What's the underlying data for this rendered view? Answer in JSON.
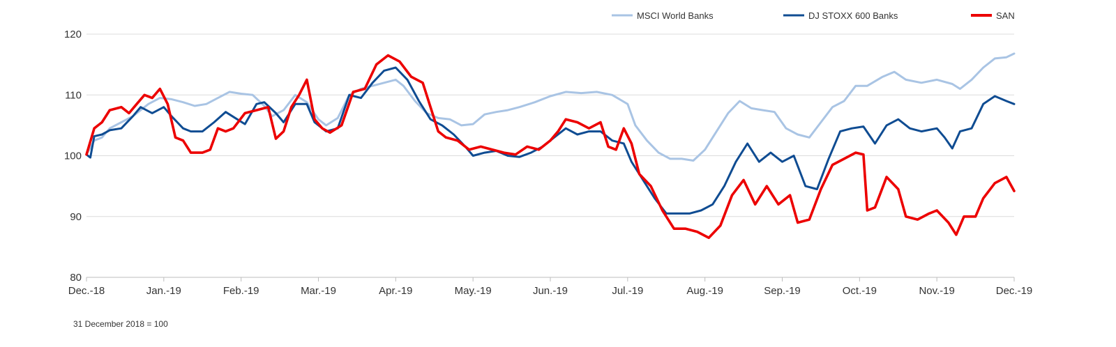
{
  "chart_data": {
    "type": "line",
    "categories": [
      "Dec.-18",
      "Jan.-19",
      "Feb.-19",
      "Mar.-19",
      "Apr.-19",
      "May.-19",
      "Jun.-19",
      "Jul.-19",
      "Aug.-19",
      "Sep.-19",
      "Oct.-19",
      "Nov.-19",
      "Dec.-19"
    ],
    "ylim": [
      80,
      120
    ],
    "yticks": [
      80,
      90,
      100,
      110,
      120
    ],
    "grid": true,
    "legend_position": "top-right",
    "series": [
      {
        "name": "MSCI World Banks",
        "color": "#a9c4e4",
        "values": [
          [
            0,
            100.2
          ],
          [
            0.1,
            102.5
          ],
          [
            0.2,
            103.0
          ],
          [
            0.3,
            104.5
          ],
          [
            0.45,
            105.5
          ],
          [
            0.6,
            106.5
          ],
          [
            0.8,
            108.5
          ],
          [
            0.95,
            109.5
          ],
          [
            1.1,
            109.3
          ],
          [
            1.25,
            108.8
          ],
          [
            1.4,
            108.2
          ],
          [
            1.55,
            108.5
          ],
          [
            1.7,
            109.5
          ],
          [
            1.85,
            110.5
          ],
          [
            2.0,
            110.2
          ],
          [
            2.15,
            110.0
          ],
          [
            2.3,
            108.2
          ],
          [
            2.4,
            106.5
          ],
          [
            2.55,
            107.5
          ],
          [
            2.7,
            110.0
          ],
          [
            2.85,
            108.8
          ],
          [
            3.0,
            106.0
          ],
          [
            3.1,
            105.0
          ],
          [
            3.25,
            106.2
          ],
          [
            3.4,
            110.0
          ],
          [
            3.55,
            111.0
          ],
          [
            3.7,
            111.5
          ],
          [
            3.85,
            112.0
          ],
          [
            4.0,
            112.5
          ],
          [
            4.1,
            111.5
          ],
          [
            4.25,
            109.0
          ],
          [
            4.4,
            107.0
          ],
          [
            4.55,
            106.2
          ],
          [
            4.7,
            106.0
          ],
          [
            4.85,
            105.0
          ],
          [
            5.0,
            105.2
          ],
          [
            5.15,
            106.8
          ],
          [
            5.3,
            107.2
          ],
          [
            5.45,
            107.5
          ],
          [
            5.6,
            108.0
          ],
          [
            5.8,
            108.8
          ],
          [
            6.0,
            109.8
          ],
          [
            6.2,
            110.5
          ],
          [
            6.4,
            110.3
          ],
          [
            6.6,
            110.5
          ],
          [
            6.8,
            110.0
          ],
          [
            7.0,
            108.5
          ],
          [
            7.1,
            105.0
          ],
          [
            7.25,
            102.5
          ],
          [
            7.4,
            100.5
          ],
          [
            7.55,
            99.5
          ],
          [
            7.7,
            99.5
          ],
          [
            7.85,
            99.2
          ],
          [
            8.0,
            101.0
          ],
          [
            8.15,
            104.0
          ],
          [
            8.3,
            107.0
          ],
          [
            8.45,
            109.0
          ],
          [
            8.6,
            107.8
          ],
          [
            8.75,
            107.5
          ],
          [
            8.9,
            107.2
          ],
          [
            9.05,
            104.5
          ],
          [
            9.2,
            103.5
          ],
          [
            9.35,
            103.0
          ],
          [
            9.5,
            105.5
          ],
          [
            9.65,
            108.0
          ],
          [
            9.8,
            109.0
          ],
          [
            9.95,
            111.5
          ],
          [
            10.1,
            111.5
          ],
          [
            10.3,
            113.0
          ],
          [
            10.45,
            113.8
          ],
          [
            10.6,
            112.5
          ],
          [
            10.8,
            112.0
          ],
          [
            11.0,
            112.5
          ],
          [
            11.2,
            111.8
          ],
          [
            11.3,
            111.0
          ],
          [
            11.45,
            112.5
          ],
          [
            11.6,
            114.5
          ],
          [
            11.75,
            116.0
          ],
          [
            11.9,
            116.2
          ],
          [
            12.0,
            116.8
          ]
        ]
      },
      {
        "name": "DJ STOXX 600 Banks",
        "color": "#0f4c92",
        "values": [
          [
            0,
            100.2
          ],
          [
            0.05,
            99.7
          ],
          [
            0.1,
            103.2
          ],
          [
            0.2,
            103.5
          ],
          [
            0.3,
            104.2
          ],
          [
            0.45,
            104.5
          ],
          [
            0.6,
            106.5
          ],
          [
            0.7,
            108.0
          ],
          [
            0.85,
            107.0
          ],
          [
            1.0,
            108.0
          ],
          [
            1.1,
            106.5
          ],
          [
            1.25,
            104.5
          ],
          [
            1.35,
            104.0
          ],
          [
            1.5,
            104.0
          ],
          [
            1.65,
            105.5
          ],
          [
            1.8,
            107.2
          ],
          [
            1.95,
            106.0
          ],
          [
            2.05,
            105.2
          ],
          [
            2.2,
            108.5
          ],
          [
            2.3,
            108.8
          ],
          [
            2.45,
            107.0
          ],
          [
            2.55,
            105.5
          ],
          [
            2.7,
            108.5
          ],
          [
            2.85,
            108.5
          ],
          [
            2.95,
            105.5
          ],
          [
            3.1,
            104.0
          ],
          [
            3.25,
            104.5
          ],
          [
            3.4,
            110.0
          ],
          [
            3.55,
            109.5
          ],
          [
            3.7,
            112.0
          ],
          [
            3.85,
            114.0
          ],
          [
            4.0,
            114.5
          ],
          [
            4.15,
            112.5
          ],
          [
            4.3,
            109.0
          ],
          [
            4.45,
            106.0
          ],
          [
            4.6,
            105.0
          ],
          [
            4.75,
            103.5
          ],
          [
            4.9,
            101.5
          ],
          [
            5.0,
            100.0
          ],
          [
            5.15,
            100.5
          ],
          [
            5.3,
            100.8
          ],
          [
            5.45,
            100.0
          ],
          [
            5.6,
            99.8
          ],
          [
            5.75,
            100.5
          ],
          [
            5.9,
            101.5
          ],
          [
            6.05,
            103.0
          ],
          [
            6.2,
            104.5
          ],
          [
            6.35,
            103.5
          ],
          [
            6.5,
            104.0
          ],
          [
            6.65,
            104.0
          ],
          [
            6.8,
            102.5
          ],
          [
            6.95,
            102.0
          ],
          [
            7.05,
            99.0
          ],
          [
            7.2,
            96.0
          ],
          [
            7.35,
            93.0
          ],
          [
            7.5,
            90.5
          ],
          [
            7.65,
            90.5
          ],
          [
            7.8,
            90.5
          ],
          [
            7.95,
            91.0
          ],
          [
            8.1,
            92.0
          ],
          [
            8.25,
            95.0
          ],
          [
            8.4,
            99.0
          ],
          [
            8.55,
            102.0
          ],
          [
            8.7,
            99.0
          ],
          [
            8.85,
            100.5
          ],
          [
            9.0,
            99.0
          ],
          [
            9.15,
            100.0
          ],
          [
            9.3,
            95.0
          ],
          [
            9.45,
            94.5
          ],
          [
            9.6,
            99.5
          ],
          [
            9.75,
            104.0
          ],
          [
            9.9,
            104.5
          ],
          [
            10.05,
            104.8
          ],
          [
            10.2,
            102.0
          ],
          [
            10.35,
            105.0
          ],
          [
            10.5,
            106.0
          ],
          [
            10.65,
            104.5
          ],
          [
            10.8,
            104.0
          ],
          [
            11.0,
            104.5
          ],
          [
            11.1,
            103.0
          ],
          [
            11.2,
            101.2
          ],
          [
            11.3,
            104.0
          ],
          [
            11.45,
            104.5
          ],
          [
            11.6,
            108.5
          ],
          [
            11.75,
            109.8
          ],
          [
            11.9,
            109.0
          ],
          [
            12.0,
            108.5
          ]
        ]
      },
      {
        "name": "SAN",
        "color": "#ec0000",
        "values": [
          [
            0,
            100.2
          ],
          [
            0.1,
            104.5
          ],
          [
            0.2,
            105.5
          ],
          [
            0.3,
            107.5
          ],
          [
            0.45,
            108.0
          ],
          [
            0.55,
            107.0
          ],
          [
            0.65,
            108.5
          ],
          [
            0.75,
            110.0
          ],
          [
            0.85,
            109.5
          ],
          [
            0.95,
            111.0
          ],
          [
            1.05,
            108.5
          ],
          [
            1.15,
            103.0
          ],
          [
            1.25,
            102.5
          ],
          [
            1.35,
            100.5
          ],
          [
            1.5,
            100.5
          ],
          [
            1.6,
            101.0
          ],
          [
            1.7,
            104.5
          ],
          [
            1.8,
            104.0
          ],
          [
            1.9,
            104.5
          ],
          [
            2.05,
            107.0
          ],
          [
            2.2,
            107.5
          ],
          [
            2.35,
            108.0
          ],
          [
            2.45,
            102.8
          ],
          [
            2.55,
            104.0
          ],
          [
            2.65,
            108.0
          ],
          [
            2.75,
            110.0
          ],
          [
            2.85,
            112.5
          ],
          [
            2.95,
            106.0
          ],
          [
            3.05,
            104.5
          ],
          [
            3.15,
            103.8
          ],
          [
            3.3,
            105.0
          ],
          [
            3.45,
            110.5
          ],
          [
            3.6,
            111.0
          ],
          [
            3.75,
            115.0
          ],
          [
            3.9,
            116.5
          ],
          [
            4.05,
            115.5
          ],
          [
            4.2,
            113.0
          ],
          [
            4.35,
            112.0
          ],
          [
            4.45,
            108.0
          ],
          [
            4.55,
            104.0
          ],
          [
            4.65,
            103.0
          ],
          [
            4.8,
            102.5
          ],
          [
            4.95,
            101.0
          ],
          [
            5.1,
            101.5
          ],
          [
            5.25,
            101.0
          ],
          [
            5.4,
            100.5
          ],
          [
            5.55,
            100.2
          ],
          [
            5.7,
            101.5
          ],
          [
            5.85,
            101.0
          ],
          [
            6.0,
            102.5
          ],
          [
            6.1,
            104.0
          ],
          [
            6.2,
            106.0
          ],
          [
            6.35,
            105.5
          ],
          [
            6.5,
            104.5
          ],
          [
            6.65,
            105.5
          ],
          [
            6.75,
            101.5
          ],
          [
            6.85,
            101.0
          ],
          [
            6.95,
            104.5
          ],
          [
            7.05,
            102.0
          ],
          [
            7.15,
            97.0
          ],
          [
            7.3,
            95.0
          ],
          [
            7.45,
            91.0
          ],
          [
            7.6,
            88.0
          ],
          [
            7.75,
            88.0
          ],
          [
            7.9,
            87.5
          ],
          [
            8.05,
            86.5
          ],
          [
            8.2,
            88.5
          ],
          [
            8.35,
            93.5
          ],
          [
            8.5,
            96.0
          ],
          [
            8.65,
            92.0
          ],
          [
            8.8,
            95.0
          ],
          [
            8.95,
            92.0
          ],
          [
            9.1,
            93.5
          ],
          [
            9.2,
            89.0
          ],
          [
            9.35,
            89.5
          ],
          [
            9.5,
            94.5
          ],
          [
            9.65,
            98.5
          ],
          [
            9.8,
            99.5
          ],
          [
            9.95,
            100.5
          ],
          [
            10.05,
            100.2
          ],
          [
            10.1,
            91.0
          ],
          [
            10.2,
            91.5
          ],
          [
            10.35,
            96.5
          ],
          [
            10.5,
            94.5
          ],
          [
            10.6,
            90.0
          ],
          [
            10.75,
            89.5
          ],
          [
            10.9,
            90.5
          ],
          [
            11.0,
            91.0
          ],
          [
            11.15,
            89.0
          ],
          [
            11.25,
            87.0
          ],
          [
            11.35,
            90.0
          ],
          [
            11.5,
            90.0
          ],
          [
            11.6,
            93.0
          ],
          [
            11.75,
            95.5
          ],
          [
            11.9,
            96.5
          ],
          [
            12.0,
            94.2
          ]
        ]
      }
    ]
  },
  "footnote": "31 December 2018 = 100"
}
